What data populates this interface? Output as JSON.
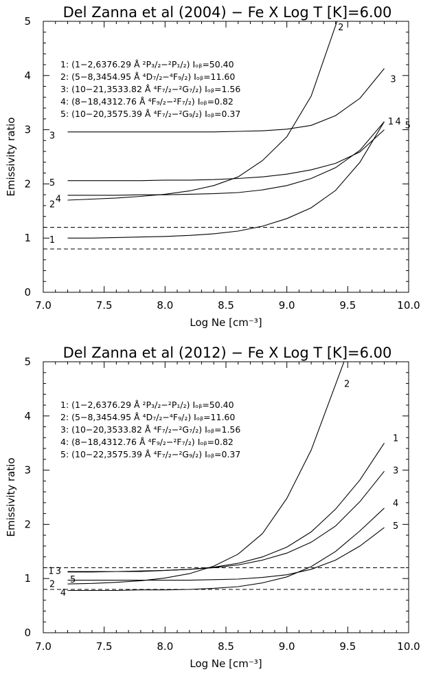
{
  "chart_data": [
    {
      "type": "line",
      "title": "Del Zanna et al (2004) −  Fe X  Log T [K]=6.00",
      "xlabel": "Log Ne [cm⁻³]",
      "ylabel": "Emissivity ratio",
      "xlim": [
        7.0,
        10.0
      ],
      "ylim": [
        0,
        5
      ],
      "xticks": [
        "7.0",
        "7.5",
        "8.0",
        "8.5",
        "9.0",
        "9.5",
        "10.0"
      ],
      "yticks": [
        "0",
        "1",
        "2",
        "3",
        "4",
        "5"
      ],
      "hlines": [
        1.2,
        0.8
      ],
      "legend": [
        "1:  (1−2,6376.29 Å ²P₃/₂−²P₁/₂) Iₒᵦ=50.40",
        "2:  (5−8,3454.95 Å ⁴D₇/₂−⁴F₉/₂) Iₒᵦ=11.60",
        "3:  (10−21,3533.82 Å ⁴F₇/₂−²G₇/₂) Iₒᵦ=1.56",
        "4:  (8−18,4312.76 Å ⁴F₉/₂−²F₇/₂) Iₒᵦ=0.82",
        "5:  (10−20,3575.39 Å ⁴F₇/₂−²G₉/₂) Iₒᵦ=0.37"
      ],
      "x": [
        7.2,
        7.4,
        7.6,
        7.8,
        8.0,
        8.2,
        8.4,
        8.6,
        8.8,
        9.0,
        9.2,
        9.4,
        9.6,
        9.8
      ],
      "series": [
        {
          "name": "1",
          "values": [
            1.0,
            1.0,
            1.01,
            1.02,
            1.03,
            1.05,
            1.08,
            1.13,
            1.22,
            1.36,
            1.56,
            1.88,
            2.4,
            3.15
          ]
        },
        {
          "name": "2",
          "values": [
            1.7,
            1.72,
            1.74,
            1.77,
            1.81,
            1.87,
            1.97,
            2.13,
            2.43,
            2.87,
            3.62,
            4.92,
            null,
            null
          ]
        },
        {
          "name": "3",
          "values": [
            2.96,
            2.96,
            2.96,
            2.96,
            2.96,
            2.96,
            2.96,
            2.97,
            2.98,
            3.01,
            3.08,
            3.26,
            3.58,
            4.13
          ]
        },
        {
          "name": "4",
          "values": [
            1.79,
            1.79,
            1.79,
            1.8,
            1.8,
            1.81,
            1.82,
            1.84,
            1.89,
            1.97,
            2.1,
            2.3,
            2.62,
            3.15
          ]
        },
        {
          "name": "5",
          "values": [
            2.06,
            2.06,
            2.06,
            2.06,
            2.07,
            2.07,
            2.08,
            2.1,
            2.13,
            2.18,
            2.26,
            2.38,
            2.59,
            3.0
          ]
        }
      ],
      "curve_labels": [
        {
          "text": "2",
          "x": 9.42,
          "y": 4.9
        },
        {
          "text": "3",
          "x": 9.85,
          "y": 3.94
        },
        {
          "text": "1",
          "x": 9.83,
          "y": 3.16
        },
        {
          "text": "4",
          "x": 9.89,
          "y": 3.16
        },
        {
          "text": "5",
          "x": 9.97,
          "y": 3.09
        },
        {
          "text": "3",
          "x": 7.05,
          "y": 2.9
        },
        {
          "text": "5",
          "x": 7.05,
          "y": 2.03
        },
        {
          "text": "2",
          "x": 7.05,
          "y": 1.63
        },
        {
          "text": "4",
          "x": 7.1,
          "y": 1.73
        },
        {
          "text": "1",
          "x": 7.05,
          "y": 0.98
        }
      ]
    },
    {
      "type": "line",
      "title": "Del Zanna et al (2012) −  Fe X  Log T [K]=6.00",
      "xlabel": "Log Ne [cm⁻³]",
      "ylabel": "Emissivity ratio",
      "xlim": [
        7.0,
        10.0
      ],
      "ylim": [
        0,
        5
      ],
      "xticks": [
        "7.0",
        "7.5",
        "8.0",
        "8.5",
        "9.0",
        "9.5",
        "10.0"
      ],
      "yticks": [
        "0",
        "1",
        "2",
        "3",
        "4",
        "5"
      ],
      "hlines": [
        1.2,
        0.8
      ],
      "legend": [
        "1:  (1−2,6376.29 Å ²P₃/₂−²P₁/₂) Iₒᵦ=50.40",
        "2:  (5−8,3454.95 Å ⁴D₇/₂−⁴F₉/₂) Iₒᵦ=11.60",
        "3:  (10−20,3533.82 Å ⁴F₇/₂−²G₇/₂) Iₒᵦ=1.56",
        "4:  (8−18,4312.76 Å ⁴F₉/₂−²F₇/₂) Iₒᵦ=0.82",
        "5:  (10−22,3575.39 Å ⁴F₇/₂−²G₉/₂) Iₒᵦ=0.37"
      ],
      "x": [
        7.2,
        7.4,
        7.6,
        7.8,
        8.0,
        8.2,
        8.4,
        8.6,
        8.8,
        9.0,
        9.2,
        9.4,
        9.6,
        9.8
      ],
      "series": [
        {
          "name": "1",
          "values": [
            1.12,
            1.12,
            1.13,
            1.13,
            1.15,
            1.17,
            1.21,
            1.28,
            1.4,
            1.58,
            1.86,
            2.28,
            2.82,
            3.5
          ]
        },
        {
          "name": "2",
          "values": [
            0.9,
            0.91,
            0.93,
            0.96,
            1.01,
            1.09,
            1.23,
            1.45,
            1.83,
            2.48,
            3.37,
            4.58,
            null,
            null
          ]
        },
        {
          "name": "3",
          "values": [
            1.13,
            1.13,
            1.13,
            1.14,
            1.15,
            1.17,
            1.2,
            1.25,
            1.34,
            1.47,
            1.67,
            1.97,
            2.42,
            2.98
          ]
        },
        {
          "name": "4",
          "values": [
            0.78,
            0.78,
            0.78,
            0.79,
            0.79,
            0.8,
            0.82,
            0.85,
            0.92,
            1.03,
            1.22,
            1.5,
            1.88,
            2.3
          ]
        },
        {
          "name": "5",
          "values": [
            0.97,
            0.97,
            0.97,
            0.97,
            0.97,
            0.97,
            0.98,
            0.99,
            1.02,
            1.07,
            1.17,
            1.34,
            1.6,
            1.94
          ]
        }
      ],
      "curve_labels": [
        {
          "text": "2",
          "x": 9.47,
          "y": 4.6
        },
        {
          "text": "1",
          "x": 9.87,
          "y": 3.6
        },
        {
          "text": "3",
          "x": 9.87,
          "y": 3.0
        },
        {
          "text": "4",
          "x": 9.87,
          "y": 2.4
        },
        {
          "text": "5",
          "x": 9.87,
          "y": 1.98
        },
        {
          "text": "1",
          "x": 7.04,
          "y": 1.15
        },
        {
          "text": "3",
          "x": 7.1,
          "y": 1.15
        },
        {
          "text": "5",
          "x": 7.22,
          "y": 0.99
        },
        {
          "text": "2",
          "x": 7.05,
          "y": 0.91
        },
        {
          "text": "4",
          "x": 7.14,
          "y": 0.75
        }
      ]
    }
  ]
}
